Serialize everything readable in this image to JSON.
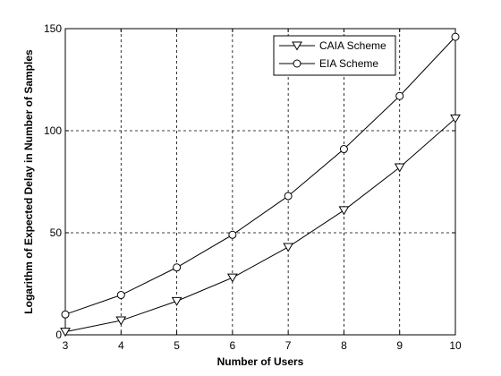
{
  "chart_data": {
    "type": "line",
    "title": "",
    "xlabel": "Number of Users",
    "ylabel": "Logarithm of Expected Delay in Number of Samples",
    "xlim": [
      3,
      10
    ],
    "ylim": [
      0,
      150
    ],
    "x_ticks": [
      3,
      4,
      5,
      6,
      7,
      8,
      9,
      10
    ],
    "y_ticks": [
      0,
      50,
      100,
      150
    ],
    "grid": true,
    "legend_position": "top-right",
    "x": [
      3,
      4,
      5,
      6,
      7,
      8,
      9,
      10
    ],
    "series": [
      {
        "name": "CAIA Scheme",
        "marker": "triangle-down",
        "color": "#000000",
        "values": [
          1.5,
          7,
          16.5,
          28,
          43,
          61,
          82,
          106
        ]
      },
      {
        "name": "EIA Scheme",
        "marker": "circle",
        "color": "#000000",
        "values": [
          10,
          19.5,
          33,
          49,
          68,
          91,
          117,
          146
        ]
      }
    ]
  }
}
